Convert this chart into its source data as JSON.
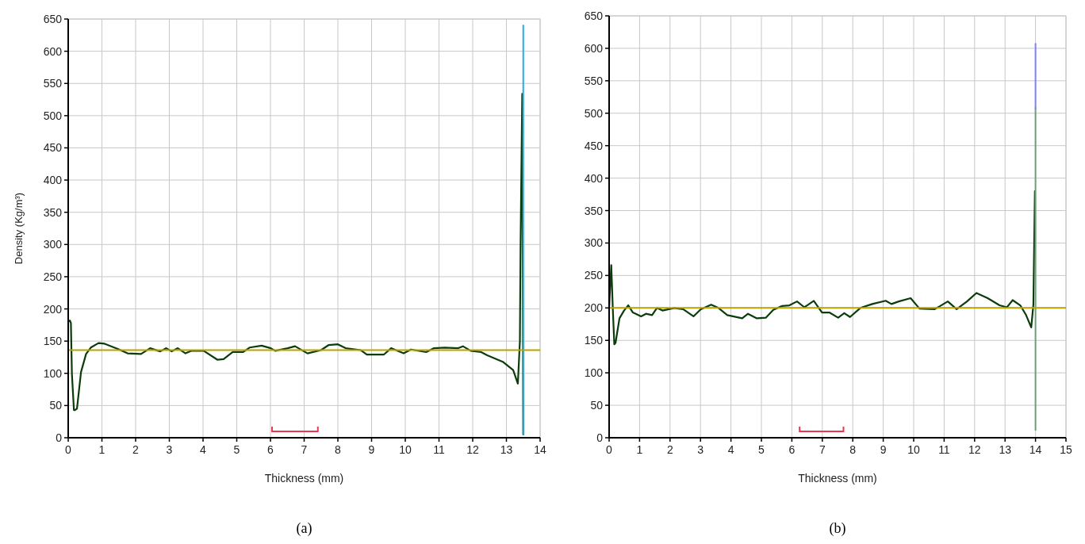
{
  "chart_data": [
    {
      "type": "line",
      "xlabel": "Thickness (mm)",
      "ylabel": "Density (Kg/m³)",
      "xlim": [
        0,
        14
      ],
      "xticks": [
        0,
        1,
        2,
        3,
        4,
        5,
        6,
        7,
        8,
        9,
        10,
        11,
        12,
        13,
        14
      ],
      "ylim": [
        0,
        650
      ],
      "yticks": [
        0,
        50,
        100,
        150,
        200,
        250,
        300,
        350,
        400,
        450,
        500,
        550,
        600,
        650
      ],
      "grid": true,
      "line_style": "solid",
      "marker": "none",
      "series": [
        {
          "color": "#0b3d0b",
          "x": [
            0,
            0.05,
            0.08,
            0.11,
            0.17,
            0.2,
            0.26,
            0.38,
            0.53,
            0.67,
            0.9,
            1.08,
            1.47,
            1.76,
            2.16,
            2.43,
            2.73,
            2.91,
            3.07,
            3.25,
            3.48,
            3.66,
            4.02,
            4.43,
            4.61,
            4.88,
            5.19,
            5.38,
            5.74,
            6.01,
            6.14,
            6.51,
            6.73,
            7.1,
            7.5,
            7.73,
            8.0,
            8.23,
            8.68,
            8.86,
            9.36,
            9.58,
            9.95,
            10.17,
            10.62,
            10.85,
            11.17,
            11.57,
            11.71,
            11.94,
            12.25,
            12.43,
            12.89,
            13.2,
            13.34,
            13.4,
            13.42,
            13.47,
            13.5
          ],
          "values": [
            180,
            182,
            178,
            99,
            43,
            43,
            45,
            102,
            130,
            140,
            147,
            146,
            138,
            131,
            130,
            139,
            134,
            139,
            134,
            139,
            131,
            135,
            135,
            121,
            122,
            133,
            133,
            140,
            143,
            139,
            135,
            139,
            142,
            131,
            136,
            144,
            145,
            139,
            136,
            129,
            129,
            139,
            131,
            137,
            133,
            139,
            140,
            139,
            142,
            135,
            133,
            128,
            118,
            105,
            84,
            150,
            300,
            534,
            5
          ]
        },
        {
          "color": "#29a8e8",
          "x": [
            13.5,
            13.5
          ],
          "values": [
            5,
            640
          ]
        }
      ],
      "ref_lines": [
        {
          "axis": "y",
          "value": 136,
          "color": "#b8a400"
        }
      ],
      "annotations": [
        "(a)"
      ]
    },
    {
      "type": "line",
      "xlabel": "Thickness (mm)",
      "xlim": [
        0,
        15
      ],
      "xticks": [
        0,
        1,
        2,
        3,
        4,
        5,
        6,
        7,
        8,
        9,
        10,
        11,
        12,
        13,
        14,
        15
      ],
      "ylim": [
        0,
        650
      ],
      "yticks": [
        0,
        50,
        100,
        150,
        200,
        250,
        300,
        350,
        400,
        450,
        500,
        550,
        600,
        650
      ],
      "grid": true,
      "line_style": "solid",
      "marker": "none",
      "series": [
        {
          "color": "#0b3d0b",
          "x": [
            0,
            0.07,
            0.12,
            0.17,
            0.21,
            0.34,
            0.49,
            0.63,
            0.78,
            1.05,
            1.21,
            1.41,
            1.57,
            1.75,
            2.14,
            2.43,
            2.77,
            3.01,
            3.35,
            3.59,
            3.88,
            4.37,
            4.56,
            4.85,
            5.15,
            5.39,
            5.68,
            5.92,
            6.17,
            6.41,
            6.72,
            6.99,
            7.23,
            7.52,
            7.72,
            7.91,
            8.25,
            8.64,
            9.08,
            9.27,
            9.51,
            9.9,
            10.19,
            10.68,
            10.87,
            11.12,
            11.41,
            11.75,
            12.06,
            12.43,
            12.82,
            13.06,
            13.25,
            13.5,
            13.69,
            13.86,
            13.93,
            13.98
          ],
          "values": [
            200,
            266,
            200,
            144,
            146,
            184,
            196,
            204,
            193,
            187,
            191,
            189,
            200,
            196,
            200,
            198,
            187,
            198,
            205,
            200,
            189,
            184,
            191,
            184,
            185,
            197,
            203,
            204,
            210,
            201,
            211,
            193,
            193,
            185,
            192,
            186,
            200,
            206,
            211,
            206,
            210,
            215,
            199,
            198,
            203,
            210,
            198,
            210,
            223,
            215,
            204,
            201,
            212,
            204,
            189,
            170,
            205,
            380
          ]
        },
        {
          "color": "#6a9f7a",
          "x": [
            14,
            14
          ],
          "values": [
            12,
            508
          ]
        },
        {
          "color": "#7f7fff",
          "x": [
            14,
            14
          ],
          "values": [
            508,
            607
          ]
        }
      ],
      "ref_lines": [
        {
          "axis": "y",
          "value": 200,
          "color": "#b8a400"
        }
      ],
      "annotations": [
        "(b)"
      ]
    }
  ]
}
